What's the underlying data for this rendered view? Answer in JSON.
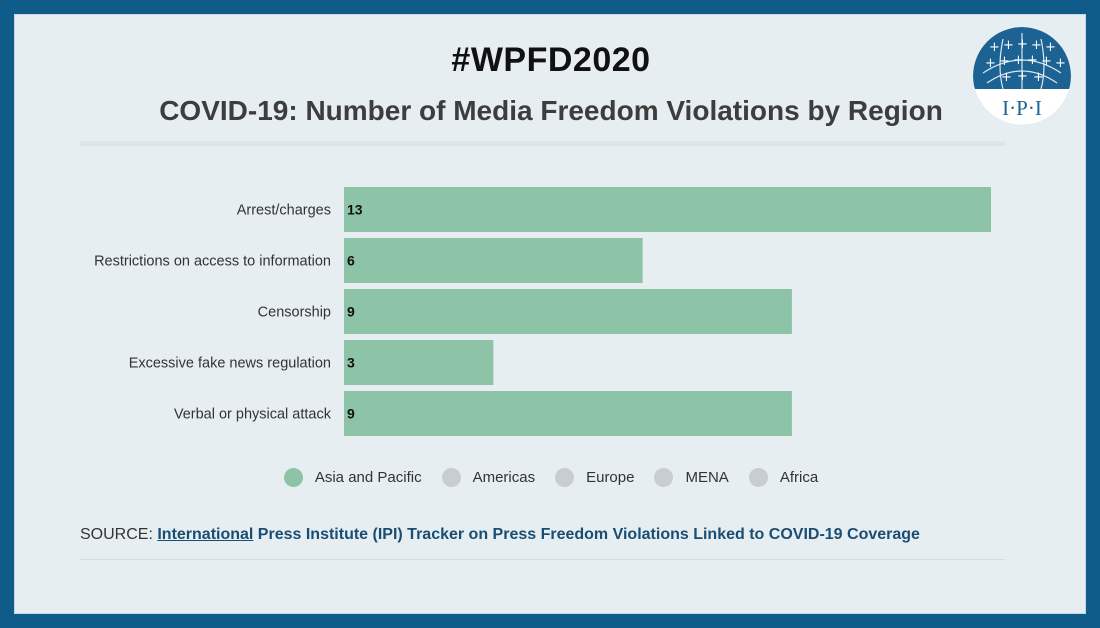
{
  "header": {
    "hashtag": "#WPFD2020",
    "title": "COVID-19: Number of Media Freedom Violations by Region"
  },
  "logo": {
    "text": "I·P·I",
    "icon": "ipi-globe-logo"
  },
  "chart_data": {
    "type": "bar",
    "orientation": "horizontal",
    "title": "COVID-19: Number of Media Freedom Violations by Region",
    "categories": [
      "Arrest/charges",
      "Restrictions on access to information",
      "Censorship",
      "Excessive fake news regulation",
      "Verbal or physical attack"
    ],
    "series": [
      {
        "name": "Asia and Pacific",
        "values": [
          13,
          6,
          9,
          3,
          9
        ]
      }
    ],
    "xlim": [
      0,
      13
    ],
    "grid": false,
    "data_labels": true,
    "bar_color": "#8dc4a8",
    "legend_position": "bottom"
  },
  "legend": {
    "items": [
      {
        "label": "Asia and Pacific",
        "active": true
      },
      {
        "label": "Americas",
        "active": false
      },
      {
        "label": "Europe",
        "active": false
      },
      {
        "label": "MENA",
        "active": false
      },
      {
        "label": "Africa",
        "active": false
      }
    ]
  },
  "source": {
    "prefix": "SOURCE: ",
    "link_text": "International",
    "rest": " Press Institute (IPI) Tracker on Press Freedom Violations Linked to COVID-19 Coverage"
  },
  "colors": {
    "frame": "#0f5c8a",
    "panel": "#e6eef1",
    "bar": "#8dc4a8",
    "legend_inactive": "#c7cdd0",
    "source_link": "#1a4d73"
  }
}
